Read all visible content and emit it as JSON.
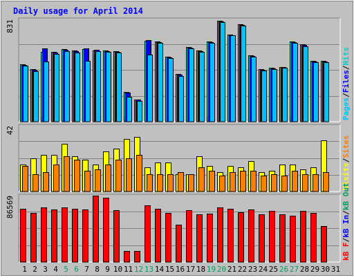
{
  "chart_data": {
    "type": "bar",
    "title": "Daily usage for April 2014",
    "categories": [
      "1",
      "2",
      "3",
      "4",
      "5",
      "6",
      "7",
      "8",
      "9",
      "10",
      "11",
      "12",
      "13",
      "14",
      "15",
      "16",
      "17",
      "18",
      "19",
      "20",
      "21",
      "22",
      "23",
      "24",
      "25",
      "26",
      "27",
      "28",
      "29",
      "30",
      "31"
    ],
    "weekend_days": [
      "5",
      "6",
      "12",
      "13",
      "19",
      "20",
      "26",
      "27"
    ],
    "panels": [
      {
        "id": "top",
        "scale_max_label": "831",
        "ylim": [
          0,
          831
        ],
        "legend": [
          "Pages",
          "/",
          "Files",
          "/",
          "Hits"
        ],
        "series": [
          {
            "name": "Hits",
            "color": "#00cccc",
            "values": [
              460,
              420,
              560,
              560,
              580,
              570,
              580,
              570,
              570,
              565,
              240,
              180,
              650,
              640,
              520,
              380,
              600,
              570,
              640,
              810,
              700,
              780,
              530,
              420,
              430,
              440,
              640,
              620,
              485,
              485,
              null
            ]
          },
          {
            "name": "Files",
            "color": "#0000ff",
            "values": [
              455,
              415,
              590,
              555,
              575,
              565,
              590,
              575,
              565,
              560,
              235,
              175,
              655,
              635,
              515,
              375,
              595,
              565,
              635,
              805,
              695,
              775,
              525,
              415,
              425,
              435,
              635,
              615,
              480,
              480,
              null
            ]
          },
          {
            "name": "Pages",
            "color": "#00c0ff",
            "values": [
              450,
              405,
              480,
              545,
              565,
              555,
              485,
              565,
              560,
              555,
              200,
              165,
              540,
              630,
              510,
              365,
              590,
              560,
              630,
              800,
              690,
              770,
              520,
              410,
              420,
              430,
              630,
              605,
              475,
              475,
              null
            ]
          }
        ]
      },
      {
        "id": "middle",
        "scale_max_label": "42",
        "ylim": [
          0,
          42
        ],
        "legend": [
          "Visits",
          "/",
          "Sites"
        ],
        "series": [
          {
            "name": "Visits",
            "color": "#ffff00",
            "values": [
              17,
              21,
              23,
              23,
              30,
              22,
              20,
              17,
              25,
              27,
              33,
              34,
              15,
              18,
              18,
              11,
              11,
              22,
              16,
              12,
              16,
              15,
              19,
              12,
              13,
              17,
              17,
              14,
              15,
              32,
              null
            ]
          },
          {
            "name": "Sites",
            "color": "#ff8000",
            "values": [
              16,
              11,
              12,
              17,
              22,
              20,
              13,
              14,
              17,
              20,
              21,
              23,
              11,
              11,
              11,
              12,
              11,
              15,
              13,
              10,
              12,
              13,
              13,
              10,
              11,
              10,
              13,
              11,
              11,
              12,
              null
            ]
          }
        ]
      },
      {
        "id": "bottom",
        "scale_max_label": "86569",
        "ylim": [
          0,
          86569
        ],
        "legend": [
          "kB F",
          "/",
          "kB In",
          "/",
          "kB Out"
        ],
        "series": [
          {
            "name": "kB F",
            "color": "#ff0000",
            "values": [
              68000,
              63000,
              70000,
              67000,
              70000,
              68000,
              67000,
              85000,
              82000,
              66000,
              14000,
              14000,
              72000,
              68000,
              63000,
              48000,
              66000,
              61000,
              62000,
              70000,
              68000,
              64000,
              67000,
              61000,
              65000,
              61000,
              59000,
              65000,
              63000,
              46000,
              null
            ]
          }
        ]
      }
    ]
  },
  "colors": {
    "background": "#c0c0c0",
    "plot_background": "#c0c0c0",
    "frame_light": "#ffffff",
    "frame_dark": "#808080",
    "title": "#0000ff",
    "scale_label": "#000000",
    "weekend_label": "#00a060",
    "weekday_label": "#000000",
    "legend_separator": "#000000",
    "legend_pages": "#00c0ff",
    "legend_files": "#0000ff",
    "legend_hits": "#00cccc",
    "legend_visits": "#ffff00",
    "legend_sites": "#ff8000",
    "legend_kbf": "#ff0000",
    "legend_kbin": "#0000ff",
    "legend_kbout": "#00a060",
    "gridline": "#808080"
  }
}
